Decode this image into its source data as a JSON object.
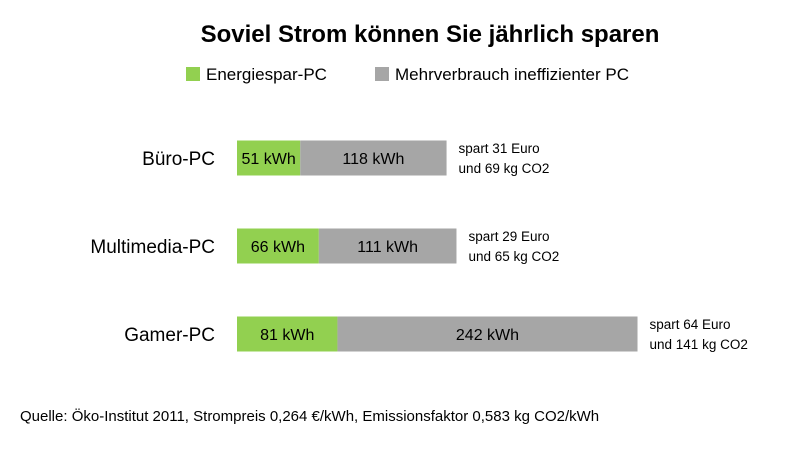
{
  "chart_data": {
    "type": "bar",
    "stacked": true,
    "orientation": "horizontal",
    "title": "Soviel Strom können Sie jährlich sparen",
    "categories": [
      "Büro-PC",
      "Multimedia-PC",
      "Gamer-PC"
    ],
    "series": [
      {
        "name": "Energiespar-PC",
        "color": "#92d050",
        "values": [
          51,
          66,
          81
        ],
        "labels": [
          "51 kWh",
          "66 kWh",
          "81 kWh"
        ]
      },
      {
        "name": "Mehrverbrauch ineffizienter PC",
        "color": "#a6a6a6",
        "values": [
          118,
          111,
          242
        ],
        "labels": [
          "118 kWh",
          "111 kWh",
          "242 kWh"
        ]
      }
    ],
    "annotations": [
      [
        "spart 31 Euro",
        "und 69 kg CO2"
      ],
      [
        "spart 29 Euro",
        "und 65 kg CO2"
      ],
      [
        "spart 64 Euro",
        "und 141 kg CO2"
      ]
    ],
    "legend_position": "top",
    "grid": false
  },
  "source_note": "Quelle: Öko-Institut 2011, Strompreis 0,264 €/kWh, Emissionsfaktor 0,583 kg CO2/kWh"
}
